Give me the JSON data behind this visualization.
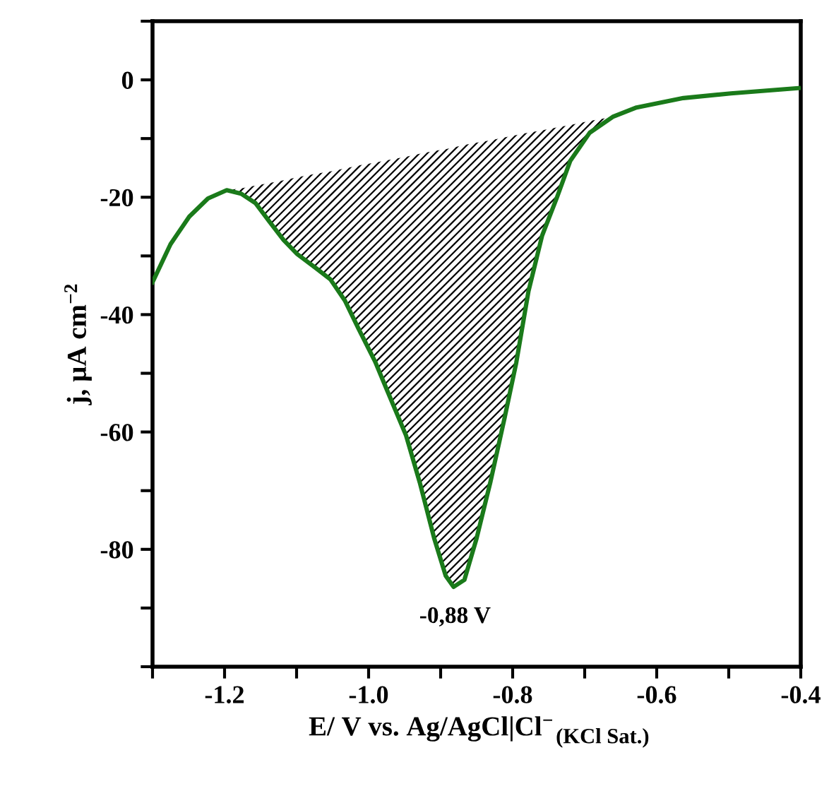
{
  "chart_data": {
    "type": "line",
    "xlabel": "E/ V vs. Ag/AgCl|Cl$^{−}$$_{(KCl Sat.)}$",
    "ylabel": "j, µA cm$^{−2}$",
    "xlim": [
      -1.3,
      -0.4
    ],
    "ylim": [
      -100,
      10
    ],
    "xticks": [
      -1.2,
      {
        "value": -1.0,
        "label": "-1.0"
      },
      -0.8,
      -0.6,
      -0.4,
      {
        "value": -1.3,
        "label": null
      },
      {
        "value": -1.1,
        "label": null
      },
      {
        "value": -0.9,
        "label": null
      },
      {
        "value": -0.7,
        "label": null
      },
      {
        "value": -0.5,
        "label": null
      }
    ],
    "yticks": [
      0,
      -20,
      -40,
      -60,
      -80,
      {
        "value": 10,
        "label": null
      },
      {
        "value": -10,
        "label": null
      },
      {
        "value": -30,
        "label": null
      },
      {
        "value": -50,
        "label": null
      },
      {
        "value": -70,
        "label": null
      },
      {
        "value": -90,
        "label": null
      },
      {
        "value": -100,
        "label": null
      }
    ],
    "grid": false,
    "legend": false,
    "marker": "none",
    "line_style": "solid",
    "series": [
      {
        "type": "line",
        "color": "#1a7a1a",
        "x": [
          -1.3,
          -1.275,
          -1.249,
          -1.223,
          -1.197,
          -1.177,
          -1.157,
          -1.138,
          -1.118,
          -1.099,
          -1.073,
          -1.053,
          -1.033,
          -1.014,
          -0.991,
          -0.975,
          -0.948,
          -0.929,
          -0.909,
          -0.893,
          -0.882,
          -0.867,
          -0.85,
          -0.831,
          -0.811,
          -0.795,
          -0.778,
          -0.759,
          -0.739,
          -0.72,
          -0.693,
          -0.661,
          -0.628,
          -0.563,
          -0.497,
          -0.403
        ],
        "values": [
          -34.5,
          -28,
          -23.3,
          -20.2,
          -18.8,
          -19.4,
          -21,
          -24.1,
          -27.3,
          -29.7,
          -32.1,
          -34,
          -37.6,
          -42.4,
          -48,
          -52.7,
          -60.6,
          -68.6,
          -78.1,
          -84.5,
          -86.4,
          -85.2,
          -78.1,
          -68.6,
          -57.5,
          -48.2,
          -36,
          -26.5,
          -20.2,
          -13.8,
          -9,
          -6.3,
          -4.7,
          -3.1,
          -2.3,
          -1.4
        ],
        "lower": [
          null,
          null,
          null,
          null,
          -18.8,
          -19.4,
          -21,
          -24.1,
          -27.3,
          -29.7,
          -32.1,
          -34,
          -37.6,
          -42.4,
          -48,
          -52.7,
          -60.6,
          -68.6,
          -78.1,
          -84.5,
          -86.4,
          -85.2,
          -78.1,
          -68.6,
          -57.5,
          -48.2,
          -36,
          -26.5,
          -20.2,
          -13.8,
          -9,
          -6.3,
          null,
          null,
          null,
          null
        ],
        "upper": [
          null,
          null,
          null,
          null,
          -18.8,
          -18.5,
          -18.0,
          -17.6,
          -17.1,
          -16.6,
          -16.0,
          -15.6,
          -15.1,
          -14.6,
          -14.1,
          -13.7,
          -13.1,
          -12.6,
          -12.1,
          -11.8,
          -11.5,
          -11.1,
          -10.7,
          -10.3,
          -9.8,
          -9.4,
          -9.0,
          -8.6,
          -8.1,
          -7.7,
          -7.0,
          -6.3,
          null,
          null,
          null,
          null
        ]
      }
    ],
    "annotations": [
      {
        "text": "-0,88 V",
        "x": -0.88,
        "y": -86.4
      }
    ]
  }
}
